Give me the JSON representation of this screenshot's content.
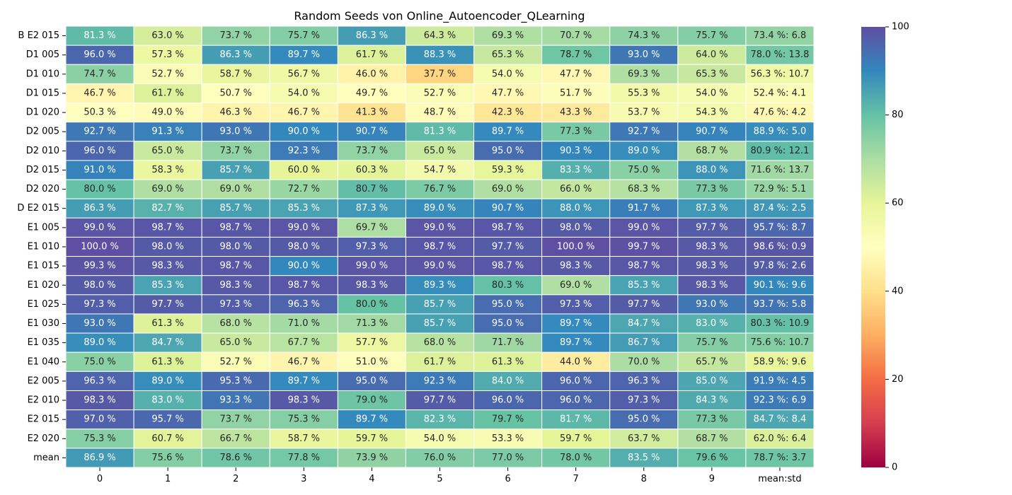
{
  "chart_data": {
    "type": "heatmap",
    "title": "Random Seeds von Online_Autoencoder_QLearning",
    "xlabel": "",
    "ylabel": "",
    "columns": [
      "0",
      "1",
      "2",
      "3",
      "4",
      "5",
      "6",
      "7",
      "8",
      "9",
      "mean:std"
    ],
    "rows": [
      "B E2 015",
      "D1 005",
      "D1 010",
      "D1 015",
      "D1 020",
      "D2 005",
      "D2 010",
      "D2 015",
      "D2 020",
      "D E2 015",
      "E1 005",
      "E1 010",
      "E1 015",
      "E1 020",
      "E1 025",
      "E1 030",
      "E1 035",
      "E1 040",
      "E2 005",
      "E2 010",
      "E2 015",
      "E2 020",
      "mean"
    ],
    "values": [
      [
        81.3,
        63.0,
        73.7,
        75.7,
        86.3,
        64.3,
        69.3,
        70.7,
        74.3,
        75.7,
        73.4
      ],
      [
        96.0,
        57.3,
        86.3,
        89.7,
        61.7,
        88.3,
        65.3,
        78.7,
        93.0,
        64.0,
        78.0
      ],
      [
        74.7,
        52.7,
        58.7,
        56.7,
        46.0,
        37.7,
        54.0,
        47.7,
        69.3,
        65.3,
        56.3
      ],
      [
        46.7,
        61.7,
        50.7,
        54.0,
        49.7,
        52.7,
        47.7,
        51.7,
        55.3,
        54.0,
        52.4
      ],
      [
        50.3,
        49.0,
        46.3,
        46.7,
        41.3,
        48.7,
        42.3,
        43.3,
        53.7,
        54.3,
        47.6
      ],
      [
        92.7,
        91.3,
        93.0,
        90.0,
        90.7,
        81.3,
        89.7,
        77.3,
        92.7,
        90.7,
        88.9
      ],
      [
        96.0,
        65.0,
        73.7,
        92.3,
        73.7,
        65.0,
        95.0,
        90.3,
        89.0,
        68.7,
        80.9
      ],
      [
        91.0,
        58.3,
        85.7,
        60.0,
        60.3,
        54.7,
        59.3,
        83.3,
        75.0,
        88.0,
        71.6
      ],
      [
        80.0,
        69.0,
        69.0,
        72.7,
        80.7,
        76.7,
        69.0,
        66.0,
        68.3,
        77.3,
        72.9
      ],
      [
        86.3,
        82.7,
        85.7,
        85.3,
        87.3,
        89.0,
        90.7,
        88.0,
        91.7,
        87.3,
        87.4
      ],
      [
        99.0,
        98.7,
        98.7,
        99.0,
        69.7,
        99.0,
        98.7,
        98.0,
        99.0,
        97.7,
        95.7
      ],
      [
        100.0,
        98.0,
        98.0,
        98.0,
        97.3,
        98.7,
        97.7,
        100.0,
        99.7,
        98.3,
        98.6
      ],
      [
        99.3,
        98.3,
        98.7,
        90.0,
        99.0,
        99.0,
        98.7,
        98.3,
        98.7,
        98.3,
        97.8
      ],
      [
        98.0,
        85.3,
        98.3,
        98.7,
        98.3,
        89.3,
        80.3,
        69.0,
        85.3,
        98.3,
        90.1
      ],
      [
        97.3,
        97.7,
        97.3,
        96.3,
        80.0,
        85.7,
        95.0,
        97.3,
        97.7,
        93.0,
        93.7
      ],
      [
        93.0,
        61.3,
        68.0,
        71.0,
        71.3,
        85.7,
        95.0,
        89.7,
        84.7,
        83.0,
        80.3
      ],
      [
        89.0,
        84.7,
        65.0,
        67.7,
        57.7,
        68.0,
        71.7,
        89.7,
        86.7,
        75.7,
        75.6
      ],
      [
        75.0,
        61.3,
        52.7,
        46.7,
        51.0,
        61.7,
        61.3,
        44.0,
        70.0,
        65.7,
        58.9
      ],
      [
        96.3,
        89.0,
        95.3,
        89.7,
        95.0,
        92.3,
        84.0,
        96.0,
        96.3,
        85.0,
        91.9
      ],
      [
        98.3,
        83.0,
        93.3,
        98.3,
        79.0,
        97.7,
        96.0,
        96.0,
        97.3,
        84.3,
        92.3
      ],
      [
        97.0,
        95.7,
        73.7,
        75.3,
        89.7,
        82.3,
        79.7,
        81.7,
        95.0,
        77.3,
        84.7
      ],
      [
        75.3,
        60.7,
        66.7,
        58.7,
        59.7,
        54.0,
        53.3,
        59.7,
        63.7,
        68.7,
        62.0
      ],
      [
        86.9,
        75.6,
        78.6,
        77.8,
        73.9,
        76.0,
        77.0,
        78.0,
        83.5,
        79.6,
        78.7
      ]
    ],
    "annotations": [
      [
        "81.3 %",
        "63.0 %",
        "73.7 %",
        "75.7 %",
        "86.3 %",
        "64.3 %",
        "69.3 %",
        "70.7 %",
        "74.3 %",
        "75.7 %",
        "73.4 %: 6.8"
      ],
      [
        "96.0 %",
        "57.3 %",
        "86.3 %",
        "89.7 %",
        "61.7 %",
        "88.3 %",
        "65.3 %",
        "78.7 %",
        "93.0 %",
        "64.0 %",
        "78.0 %: 13.8"
      ],
      [
        "74.7 %",
        "52.7 %",
        "58.7 %",
        "56.7 %",
        "46.0 %",
        "37.7 %",
        "54.0 %",
        "47.7 %",
        "69.3 %",
        "65.3 %",
        "56.3 %: 10.7"
      ],
      [
        "46.7 %",
        "61.7 %",
        "50.7 %",
        "54.0 %",
        "49.7 %",
        "52.7 %",
        "47.7 %",
        "51.7 %",
        "55.3 %",
        "54.0 %",
        "52.4 %: 4.1"
      ],
      [
        "50.3 %",
        "49.0 %",
        "46.3 %",
        "46.7 %",
        "41.3 %",
        "48.7 %",
        "42.3 %",
        "43.3 %",
        "53.7 %",
        "54.3 %",
        "47.6 %: 4.2"
      ],
      [
        "92.7 %",
        "91.3 %",
        "93.0 %",
        "90.0 %",
        "90.7 %",
        "81.3 %",
        "89.7 %",
        "77.3 %",
        "92.7 %",
        "90.7 %",
        "88.9 %: 5.0"
      ],
      [
        "96.0 %",
        "65.0 %",
        "73.7 %",
        "92.3 %",
        "73.7 %",
        "65.0 %",
        "95.0 %",
        "90.3 %",
        "89.0 %",
        "68.7 %",
        "80.9 %: 12.1"
      ],
      [
        "91.0 %",
        "58.3 %",
        "85.7 %",
        "60.0 %",
        "60.3 %",
        "54.7 %",
        "59.3 %",
        "83.3 %",
        "75.0 %",
        "88.0 %",
        "71.6 %: 13.7"
      ],
      [
        "80.0 %",
        "69.0 %",
        "69.0 %",
        "72.7 %",
        "80.7 %",
        "76.7 %",
        "69.0 %",
        "66.0 %",
        "68.3 %",
        "77.3 %",
        "72.9 %: 5.1"
      ],
      [
        "86.3 %",
        "82.7 %",
        "85.7 %",
        "85.3 %",
        "87.3 %",
        "89.0 %",
        "90.7 %",
        "88.0 %",
        "91.7 %",
        "87.3 %",
        "87.4 %: 2.5"
      ],
      [
        "99.0 %",
        "98.7 %",
        "98.7 %",
        "99.0 %",
        "69.7 %",
        "99.0 %",
        "98.7 %",
        "98.0 %",
        "99.0 %",
        "97.7 %",
        "95.7 %: 8.7"
      ],
      [
        "100.0 %",
        "98.0 %",
        "98.0 %",
        "98.0 %",
        "97.3 %",
        "98.7 %",
        "97.7 %",
        "100.0 %",
        "99.7 %",
        "98.3 %",
        "98.6 %: 0.9"
      ],
      [
        "99.3 %",
        "98.3 %",
        "98.7 %",
        "90.0 %",
        "99.0 %",
        "99.0 %",
        "98.7 %",
        "98.3 %",
        "98.7 %",
        "98.3 %",
        "97.8 %: 2.6"
      ],
      [
        "98.0 %",
        "85.3 %",
        "98.3 %",
        "98.7 %",
        "98.3 %",
        "89.3 %",
        "80.3 %",
        "69.0 %",
        "85.3 %",
        "98.3 %",
        "90.1 %: 9.6"
      ],
      [
        "97.3 %",
        "97.7 %",
        "97.3 %",
        "96.3 %",
        "80.0 %",
        "85.7 %",
        "95.0 %",
        "97.3 %",
        "97.7 %",
        "93.0 %",
        "93.7 %: 5.8"
      ],
      [
        "93.0 %",
        "61.3 %",
        "68.0 %",
        "71.0 %",
        "71.3 %",
        "85.7 %",
        "95.0 %",
        "89.7 %",
        "84.7 %",
        "83.0 %",
        "80.3 %: 10.9"
      ],
      [
        "89.0 %",
        "84.7 %",
        "65.0 %",
        "67.7 %",
        "57.7 %",
        "68.0 %",
        "71.7 %",
        "89.7 %",
        "86.7 %",
        "75.7 %",
        "75.6 %: 10.7"
      ],
      [
        "75.0 %",
        "61.3 %",
        "52.7 %",
        "46.7 %",
        "51.0 %",
        "61.7 %",
        "61.3 %",
        "44.0 %",
        "70.0 %",
        "65.7 %",
        "58.9 %: 9.6"
      ],
      [
        "96.3 %",
        "89.0 %",
        "95.3 %",
        "89.7 %",
        "95.0 %",
        "92.3 %",
        "84.0 %",
        "96.0 %",
        "96.3 %",
        "85.0 %",
        "91.9 %: 4.5"
      ],
      [
        "98.3 %",
        "83.0 %",
        "93.3 %",
        "98.3 %",
        "79.0 %",
        "97.7 %",
        "96.0 %",
        "96.0 %",
        "97.3 %",
        "84.3 %",
        "92.3 %: 6.9"
      ],
      [
        "97.0 %",
        "95.7 %",
        "73.7 %",
        "75.3 %",
        "89.7 %",
        "82.3 %",
        "79.7 %",
        "81.7 %",
        "95.0 %",
        "77.3 %",
        "84.7 %: 8.4"
      ],
      [
        "75.3 %",
        "60.7 %",
        "66.7 %",
        "58.7 %",
        "59.7 %",
        "54.0 %",
        "53.3 %",
        "59.7 %",
        "63.7 %",
        "68.7 %",
        "62.0 %: 6.4"
      ],
      [
        "86.9 %",
        "75.6 %",
        "78.6 %",
        "77.8 %",
        "73.9 %",
        "76.0 %",
        "77.0 %",
        "78.0 %",
        "83.5 %",
        "79.6 %",
        "78.7 %: 3.7"
      ]
    ],
    "colorbar": {
      "colormap": "Spectral",
      "vmin": 0,
      "vmax": 100,
      "ticks": [
        "0",
        "20",
        "40",
        "60",
        "80",
        "100"
      ]
    },
    "colors": {
      "cell_border": "#ffffff",
      "light_text": "#ffffff",
      "dark_text": "#262626"
    }
  }
}
